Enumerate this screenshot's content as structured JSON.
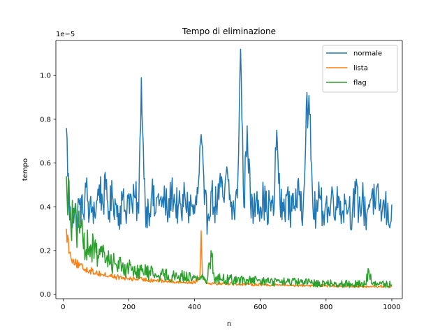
{
  "chart_data": {
    "type": "line",
    "title": "Tempo di eliminazione",
    "xlabel": "n",
    "ylabel": "tempo",
    "y_offset_text": "1e−5",
    "y_scale": 1e-05,
    "xlim": [
      -22,
      1032
    ],
    "ylim": [
      -0.02,
      1.16
    ],
    "x_ticks": [
      0,
      200,
      400,
      600,
      800,
      1000
    ],
    "x_tick_labels": [
      "0",
      "200",
      "400",
      "600",
      "800",
      "1000"
    ],
    "y_ticks": [
      0.0,
      0.2,
      0.4,
      0.6,
      0.8,
      1.0
    ],
    "y_tick_labels": [
      "0.0",
      "0.2",
      "0.4",
      "0.6",
      "0.8",
      "1.0"
    ],
    "grid": false,
    "legend_position": "top-right",
    "x_start": 10,
    "x_step": 2,
    "series": [
      {
        "name": "normale",
        "color": "#1f77b4",
        "points": [
          [
            10,
            0.76
          ],
          [
            20,
            0.34
          ],
          [
            30,
            0.37
          ],
          [
            40,
            0.36
          ],
          [
            50,
            0.41
          ],
          [
            60,
            0.37
          ],
          [
            70,
            0.49
          ],
          [
            80,
            0.36
          ],
          [
            90,
            0.4
          ],
          [
            100,
            0.38
          ],
          [
            110,
            0.5
          ],
          [
            120,
            0.42
          ],
          [
            130,
            0.48
          ],
          [
            140,
            0.38
          ],
          [
            150,
            0.45
          ],
          [
            160,
            0.41
          ],
          [
            170,
            0.37
          ],
          [
            180,
            0.43
          ],
          [
            190,
            0.38
          ],
          [
            200,
            0.46
          ],
          [
            210,
            0.4
          ],
          [
            220,
            0.44
          ],
          [
            230,
            0.37
          ],
          [
            238,
            0.99
          ],
          [
            242,
            0.75
          ],
          [
            250,
            0.4
          ],
          [
            260,
            0.38
          ],
          [
            270,
            0.47
          ],
          [
            280,
            0.37
          ],
          [
            290,
            0.46
          ],
          [
            300,
            0.4
          ],
          [
            310,
            0.43
          ],
          [
            320,
            0.36
          ],
          [
            330,
            0.48
          ],
          [
            340,
            0.42
          ],
          [
            350,
            0.4
          ],
          [
            360,
            0.36
          ],
          [
            370,
            0.46
          ],
          [
            380,
            0.39
          ],
          [
            390,
            0.41
          ],
          [
            400,
            0.37
          ],
          [
            410,
            0.46
          ],
          [
            420,
            0.73
          ],
          [
            430,
            0.41
          ],
          [
            440,
            0.35
          ],
          [
            450,
            0.47
          ],
          [
            460,
            0.4
          ],
          [
            470,
            0.43
          ],
          [
            480,
            0.49
          ],
          [
            490,
            0.42
          ],
          [
            500,
            0.56
          ],
          [
            510,
            0.4
          ],
          [
            520,
            0.38
          ],
          [
            530,
            0.44
          ],
          [
            540,
            1.12
          ],
          [
            550,
            0.4
          ],
          [
            560,
            0.77
          ],
          [
            570,
            0.42
          ],
          [
            580,
            0.37
          ],
          [
            590,
            0.47
          ],
          [
            600,
            0.4
          ],
          [
            610,
            0.44
          ],
          [
            620,
            0.38
          ],
          [
            630,
            0.42
          ],
          [
            640,
            0.36
          ],
          [
            650,
            0.75
          ],
          [
            660,
            0.41
          ],
          [
            670,
            0.38
          ],
          [
            680,
            0.45
          ],
          [
            690,
            0.37
          ],
          [
            700,
            0.46
          ],
          [
            710,
            0.4
          ],
          [
            720,
            0.47
          ],
          [
            730,
            0.38
          ],
          [
            740,
            0.87
          ],
          [
            750,
            0.82
          ],
          [
            760,
            0.4
          ],
          [
            770,
            0.37
          ],
          [
            780,
            0.44
          ],
          [
            790,
            0.38
          ],
          [
            800,
            0.42
          ],
          [
            810,
            0.36
          ],
          [
            820,
            0.47
          ],
          [
            830,
            0.4
          ],
          [
            840,
            0.44
          ],
          [
            850,
            0.38
          ],
          [
            860,
            0.43
          ],
          [
            870,
            0.4
          ],
          [
            880,
            0.37
          ],
          [
            890,
            0.46
          ],
          [
            900,
            0.39
          ],
          [
            910,
            0.44
          ],
          [
            920,
            0.36
          ],
          [
            930,
            0.41
          ],
          [
            940,
            0.47
          ],
          [
            950,
            0.39
          ],
          [
            960,
            0.43
          ],
          [
            970,
            0.37
          ],
          [
            980,
            0.41
          ],
          [
            990,
            0.33
          ],
          [
            1000,
            0.41
          ]
        ]
      },
      {
        "name": "lista",
        "color": "#ff7f0e",
        "points": [
          [
            10,
            0.3
          ],
          [
            20,
            0.19
          ],
          [
            30,
            0.16
          ],
          [
            40,
            0.14
          ],
          [
            50,
            0.13
          ],
          [
            60,
            0.12
          ],
          [
            80,
            0.11
          ],
          [
            100,
            0.1
          ],
          [
            120,
            0.09
          ],
          [
            140,
            0.085
          ],
          [
            160,
            0.08
          ],
          [
            180,
            0.075
          ],
          [
            200,
            0.072
          ],
          [
            240,
            0.068
          ],
          [
            280,
            0.064
          ],
          [
            320,
            0.06
          ],
          [
            360,
            0.057
          ],
          [
            400,
            0.055
          ],
          [
            416,
            0.08
          ],
          [
            420,
            0.29
          ],
          [
            424,
            0.08
          ],
          [
            440,
            0.052
          ],
          [
            480,
            0.05
          ],
          [
            520,
            0.048
          ],
          [
            560,
            0.046
          ],
          [
            600,
            0.045
          ],
          [
            640,
            0.043
          ],
          [
            680,
            0.042
          ],
          [
            720,
            0.041
          ],
          [
            760,
            0.04
          ],
          [
            800,
            0.039
          ],
          [
            840,
            0.038
          ],
          [
            880,
            0.037
          ],
          [
            920,
            0.036
          ],
          [
            960,
            0.036
          ],
          [
            1000,
            0.035
          ]
        ]
      },
      {
        "name": "flag",
        "color": "#2ca02c",
        "points": [
          [
            10,
            0.54
          ],
          [
            20,
            0.38
          ],
          [
            30,
            0.33
          ],
          [
            40,
            0.3
          ],
          [
            50,
            0.28
          ],
          [
            60,
            0.25
          ],
          [
            80,
            0.22
          ],
          [
            100,
            0.19
          ],
          [
            120,
            0.17
          ],
          [
            140,
            0.155
          ],
          [
            160,
            0.14
          ],
          [
            180,
            0.13
          ],
          [
            200,
            0.12
          ],
          [
            240,
            0.105
          ],
          [
            280,
            0.095
          ],
          [
            320,
            0.088
          ],
          [
            360,
            0.082
          ],
          [
            400,
            0.077
          ],
          [
            440,
            0.073
          ],
          [
            450,
            0.2
          ],
          [
            460,
            0.072
          ],
          [
            480,
            0.07
          ],
          [
            520,
            0.066
          ],
          [
            560,
            0.063
          ],
          [
            600,
            0.06
          ],
          [
            640,
            0.058
          ],
          [
            680,
            0.056
          ],
          [
            720,
            0.054
          ],
          [
            760,
            0.052
          ],
          [
            800,
            0.05
          ],
          [
            840,
            0.049
          ],
          [
            880,
            0.048
          ],
          [
            920,
            0.047
          ],
          [
            930,
            0.11
          ],
          [
            940,
            0.047
          ],
          [
            960,
            0.046
          ],
          [
            1000,
            0.045
          ]
        ]
      }
    ]
  }
}
